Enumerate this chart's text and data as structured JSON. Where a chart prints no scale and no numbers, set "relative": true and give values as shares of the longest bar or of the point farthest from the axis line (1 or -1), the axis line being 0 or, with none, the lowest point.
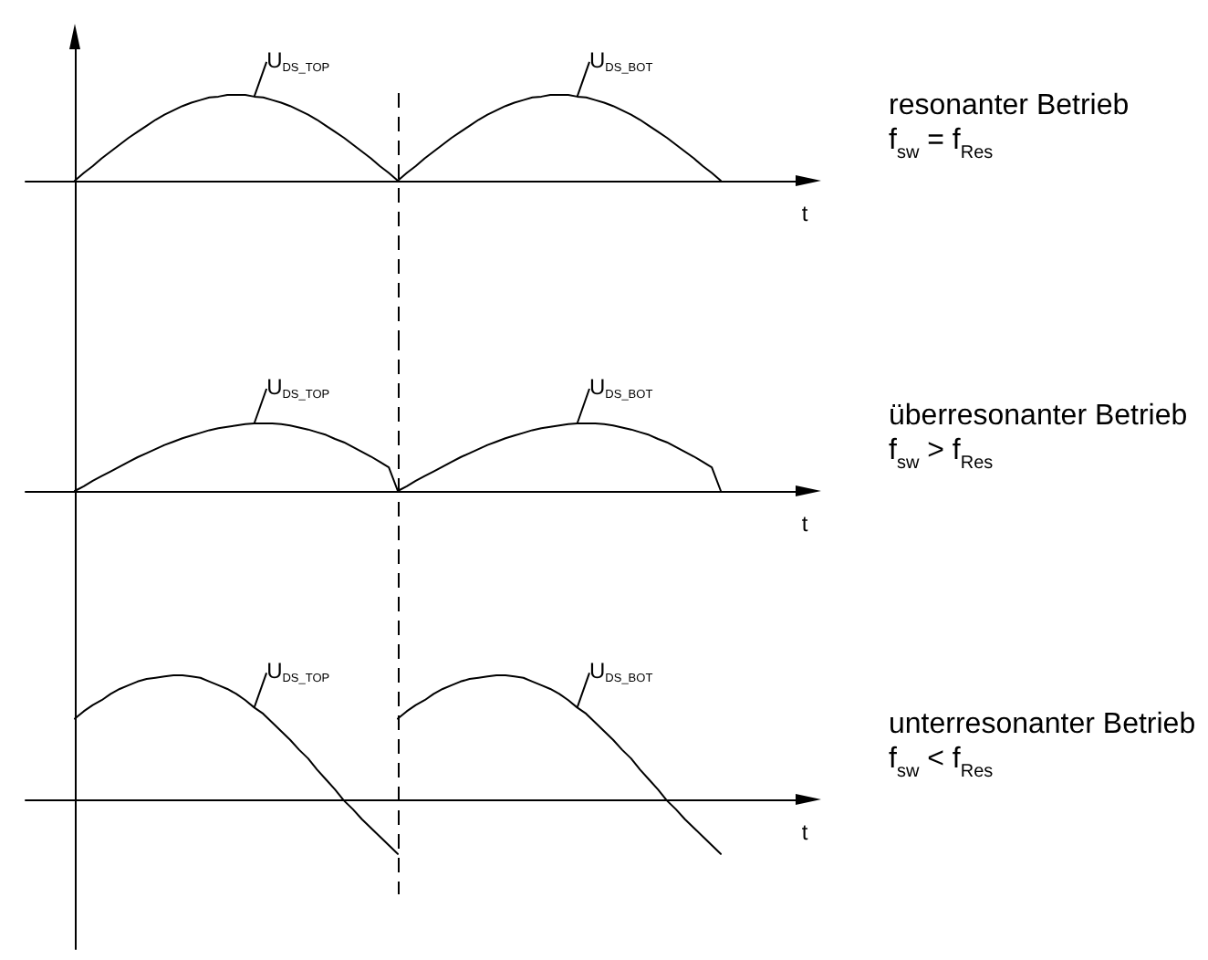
{
  "chart_data": [
    {
      "type": "line",
      "annotations": [
        "resonanter Betrieb",
        "f$_{sw}$ = f$_{Res}$"
      ],
      "xlabel": "t",
      "relative": true,
      "tick_labels": false,
      "categories": [
        null,
        null,
        null,
        null,
        null,
        null,
        null,
        null,
        null,
        null,
        null,
        null,
        null,
        null,
        null,
        null,
        null,
        null,
        null,
        null,
        null,
        null,
        null,
        null,
        null,
        null,
        null,
        null,
        null,
        null,
        null,
        null,
        null,
        null,
        null,
        null,
        null,
        null,
        null,
        null,
        null,
        null,
        null,
        null,
        null,
        null,
        null,
        null,
        null,
        null,
        null,
        null,
        null,
        null,
        null,
        null,
        null,
        null,
        null,
        null,
        null,
        null,
        null,
        null,
        null,
        null,
        null,
        null,
        null,
        null,
        null,
        null,
        null
      ],
      "series": [
        {
          "name": "U$_{DS_TOP}$",
          "color": "#000000",
          "values": [
            0,
            0.09,
            0.17,
            0.26,
            0.34,
            0.42,
            0.5,
            0.57,
            0.64,
            0.71,
            0.77,
            0.82,
            0.87,
            0.91,
            0.94,
            0.97,
            0.98,
            1,
            1,
            1,
            0.98,
            0.97,
            0.94,
            0.91,
            0.87,
            0.82,
            0.77,
            0.71,
            0.64,
            0.57,
            0.5,
            0.42,
            0.34,
            0.26,
            0.17,
            0.09,
            0,
            null,
            null,
            null,
            null,
            null,
            null,
            null,
            null,
            null,
            null,
            null,
            null,
            null,
            null,
            null,
            null,
            null,
            null,
            null,
            null,
            null,
            null,
            null,
            null,
            null,
            null,
            null,
            null,
            null,
            null,
            null,
            null,
            null,
            null,
            null,
            null
          ]
        },
        {
          "name": "U$_{DS_BOT}$",
          "color": "#000000",
          "values": [
            null,
            null,
            null,
            null,
            null,
            null,
            null,
            null,
            null,
            null,
            null,
            null,
            null,
            null,
            null,
            null,
            null,
            null,
            null,
            null,
            null,
            null,
            null,
            null,
            null,
            null,
            null,
            null,
            null,
            null,
            null,
            null,
            null,
            null,
            null,
            null,
            0,
            0.09,
            0.17,
            0.26,
            0.34,
            0.42,
            0.5,
            0.57,
            0.64,
            0.71,
            0.77,
            0.82,
            0.87,
            0.91,
            0.94,
            0.97,
            0.98,
            1,
            1,
            1,
            0.98,
            0.97,
            0.94,
            0.91,
            0.87,
            0.82,
            0.77,
            0.71,
            0.64,
            0.57,
            0.5,
            0.42,
            0.34,
            0.26,
            0.17,
            0.09,
            0
          ]
        }
      ]
    },
    {
      "type": "line",
      "annotations": [
        "überresonanter Betrieb",
        "f$_{sw}$ > f$_{Res}$"
      ],
      "xlabel": "t",
      "relative": true,
      "tick_labels": false,
      "categories": [
        null,
        null,
        null,
        null,
        null,
        null,
        null,
        null,
        null,
        null,
        null,
        null,
        null,
        null,
        null,
        null,
        null,
        null,
        null,
        null,
        null,
        null,
        null,
        null,
        null,
        null,
        null,
        null,
        null,
        null,
        null,
        null,
        null,
        null,
        null,
        null,
        null,
        null,
        null,
        null,
        null,
        null,
        null,
        null,
        null,
        null,
        null,
        null,
        null,
        null,
        null,
        null,
        null,
        null,
        null,
        null,
        null,
        null,
        null,
        null,
        null,
        null,
        null,
        null,
        null,
        null,
        null,
        null,
        null,
        null,
        null,
        null,
        null
      ],
      "series": [
        {
          "name": "U$_{DS_TOP}$",
          "color": "#000000",
          "values": [
            0,
            0.07,
            0.15,
            0.22,
            0.29,
            0.36,
            0.43,
            0.5,
            0.56,
            0.62,
            0.68,
            0.73,
            0.78,
            0.82,
            0.86,
            0.9,
            0.93,
            0.95,
            0.97,
            0.99,
            1,
            1,
            1,
            0.99,
            0.97,
            0.94,
            0.91,
            0.87,
            0.83,
            0.77,
            0.72,
            0.65,
            0.58,
            0.51,
            0.43,
            0.35,
            0,
            null,
            null,
            null,
            null,
            null,
            null,
            null,
            null,
            null,
            null,
            null,
            null,
            null,
            null,
            null,
            null,
            null,
            null,
            null,
            null,
            null,
            null,
            null,
            null,
            null,
            null,
            null,
            null,
            null,
            null,
            null,
            null,
            null,
            null,
            null,
            null
          ]
        },
        {
          "name": "U$_{DS_BOT}$",
          "color": "#000000",
          "values": [
            null,
            null,
            null,
            null,
            null,
            null,
            null,
            null,
            null,
            null,
            null,
            null,
            null,
            null,
            null,
            null,
            null,
            null,
            null,
            null,
            null,
            null,
            null,
            null,
            null,
            null,
            null,
            null,
            null,
            null,
            null,
            null,
            null,
            null,
            null,
            null,
            0,
            0.07,
            0.15,
            0.22,
            0.29,
            0.36,
            0.43,
            0.5,
            0.56,
            0.62,
            0.68,
            0.73,
            0.78,
            0.82,
            0.86,
            0.9,
            0.93,
            0.95,
            0.97,
            0.99,
            1,
            1,
            1,
            0.99,
            0.97,
            0.94,
            0.91,
            0.87,
            0.83,
            0.77,
            0.72,
            0.65,
            0.58,
            0.51,
            0.43,
            0.35,
            0
          ]
        }
      ]
    },
    {
      "type": "line",
      "annotations": [
        "unterresonanter Betrieb",
        "f$_{sw}$ < f$_{Res}$"
      ],
      "xlabel": "t",
      "relative": true,
      "tick_labels": false,
      "categories": [
        null,
        null,
        null,
        null,
        null,
        null,
        null,
        null,
        null,
        null,
        null,
        null,
        null,
        null,
        null,
        null,
        null,
        null,
        null,
        null,
        null,
        null,
        null,
        null,
        null,
        null,
        null,
        null,
        null,
        null,
        null,
        null,
        null,
        null,
        null,
        null,
        null,
        null,
        null,
        null,
        null,
        null,
        null,
        null,
        null,
        null,
        null,
        null,
        null,
        null,
        null,
        null,
        null,
        null,
        null,
        null,
        null,
        null,
        null,
        null,
        null,
        null,
        null,
        null,
        null,
        null,
        null,
        null,
        null,
        null,
        null,
        null,
        null
      ],
      "series": [
        {
          "name": "U$_{DS_TOP}$",
          "color": "#000000",
          "values": [
            0.65,
            0.71,
            0.76,
            0.8,
            0.85,
            0.89,
            0.92,
            0.95,
            0.97,
            0.98,
            0.99,
            1,
            1,
            0.99,
            0.98,
            0.95,
            0.92,
            0.89,
            0.85,
            0.8,
            0.74,
            0.69,
            0.62,
            0.55,
            0.48,
            0.4,
            0.33,
            0.24,
            0.16,
            0.08,
            -0.01,
            -0.08,
            -0.16,
            -0.23,
            -0.3,
            -0.37,
            -0.44,
            null,
            null,
            null,
            null,
            null,
            null,
            null,
            null,
            null,
            null,
            null,
            null,
            null,
            null,
            null,
            null,
            null,
            null,
            null,
            null,
            null,
            null,
            null,
            null,
            null,
            null,
            null,
            null,
            null,
            null,
            null,
            null,
            null,
            null,
            null,
            null
          ]
        },
        {
          "name": "U$_{DS_BOT}$",
          "color": "#000000",
          "values": [
            null,
            null,
            null,
            null,
            null,
            null,
            null,
            null,
            null,
            null,
            null,
            null,
            null,
            null,
            null,
            null,
            null,
            null,
            null,
            null,
            null,
            null,
            null,
            null,
            null,
            null,
            null,
            null,
            null,
            null,
            null,
            null,
            null,
            null,
            null,
            null,
            0.65,
            0.71,
            0.76,
            0.8,
            0.85,
            0.89,
            0.92,
            0.95,
            0.97,
            0.98,
            0.99,
            1,
            1,
            0.99,
            0.98,
            0.95,
            0.92,
            0.89,
            0.85,
            0.8,
            0.74,
            0.69,
            0.62,
            0.55,
            0.48,
            0.4,
            0.33,
            0.24,
            0.16,
            0.08,
            -0.01,
            -0.08,
            -0.16,
            -0.23,
            -0.3,
            -0.37,
            -0.44
          ]
        }
      ]
    }
  ]
}
